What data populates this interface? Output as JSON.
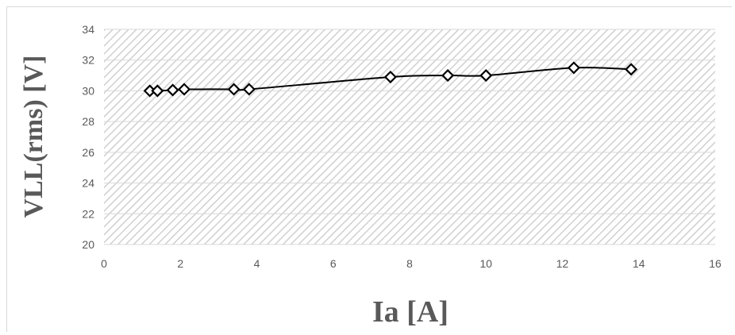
{
  "chart_data": {
    "type": "line",
    "title": "",
    "xlabel": "Ia [A]",
    "ylabel": "VLL(rms) [V]",
    "xlim": [
      0,
      16
    ],
    "ylim": [
      20,
      34
    ],
    "xticks": [
      0,
      2,
      4,
      6,
      8,
      10,
      12,
      14,
      16
    ],
    "yticks": [
      20,
      22,
      24,
      26,
      28,
      30,
      32,
      34
    ],
    "grid": true,
    "plot_background": "diagonal hatch",
    "marker": "diamond",
    "colors": {
      "line": "#000000",
      "grid": "#d9d9d9",
      "hatch": "#d0d0d0",
      "text": "#595959"
    },
    "series": [
      {
        "x": [
          1.2,
          1.4,
          1.8,
          2.1,
          3.4,
          3.8,
          7.5,
          9.0,
          10.0,
          12.3,
          13.8
        ],
        "values": [
          30.0,
          30.0,
          30.05,
          30.1,
          30.1,
          30.1,
          30.9,
          31.0,
          31.0,
          31.5,
          31.4
        ]
      }
    ]
  }
}
